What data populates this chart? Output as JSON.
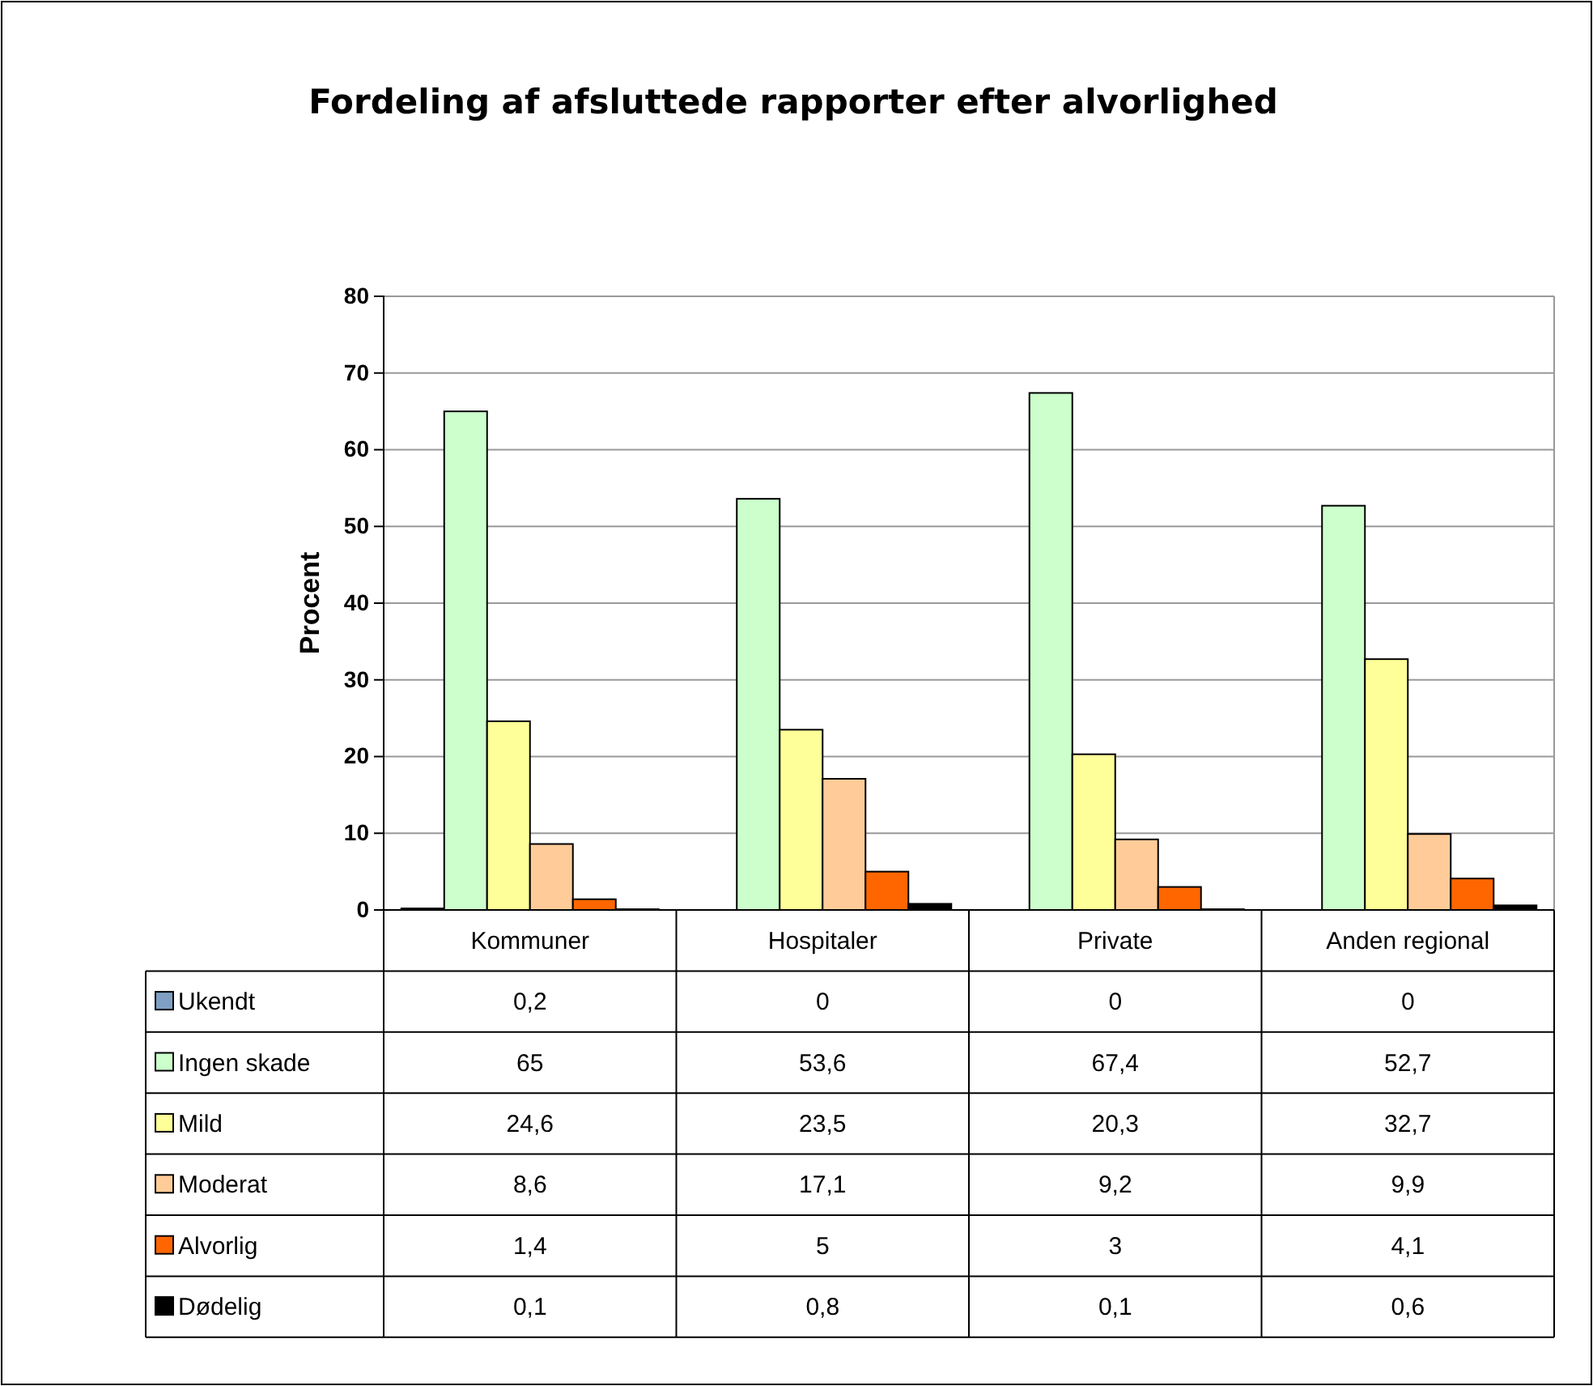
{
  "chart_data": {
    "type": "bar",
    "title": "Fordeling af afsluttede rapporter efter alvorlighed",
    "ylabel": "Procent",
    "categories": [
      "Kommuner",
      "Hospitaler",
      "Private",
      "Anden regional"
    ],
    "series": [
      {
        "name": "Ukendt",
        "color": "#7f9fc4",
        "values": [
          0.2,
          0,
          0,
          0
        ],
        "value_labels": [
          "0,2",
          "0",
          "0",
          "0"
        ]
      },
      {
        "name": "Ingen skade",
        "color": "#ccffcc",
        "values": [
          65,
          53.6,
          67.4,
          52.7
        ],
        "value_labels": [
          "65",
          "53,6",
          "67,4",
          "52,7"
        ]
      },
      {
        "name": "Mild",
        "color": "#ffff99",
        "values": [
          24.6,
          23.5,
          20.3,
          32.7
        ],
        "value_labels": [
          "24,6",
          "23,5",
          "20,3",
          "32,7"
        ]
      },
      {
        "name": "Moderat",
        "color": "#ffcc99",
        "values": [
          8.6,
          17.1,
          9.2,
          9.9
        ],
        "value_labels": [
          "8,6",
          "17,1",
          "9,2",
          "9,9"
        ]
      },
      {
        "name": "Alvorlig",
        "color": "#ff6600",
        "values": [
          1.4,
          5,
          3,
          4.1
        ],
        "value_labels": [
          "1,4",
          "5",
          "3",
          "4,1"
        ]
      },
      {
        "name": "Dødelig",
        "color": "#000000",
        "values": [
          0.1,
          0.8,
          0.1,
          0.6
        ],
        "value_labels": [
          "0,1",
          "0,8",
          "0,1",
          "0,6"
        ]
      }
    ],
    "ylim": [
      0,
      80
    ],
    "yticks": [
      0,
      10,
      20,
      30,
      40,
      50,
      60,
      70,
      80
    ],
    "grid": "y",
    "legend": "bottom"
  }
}
